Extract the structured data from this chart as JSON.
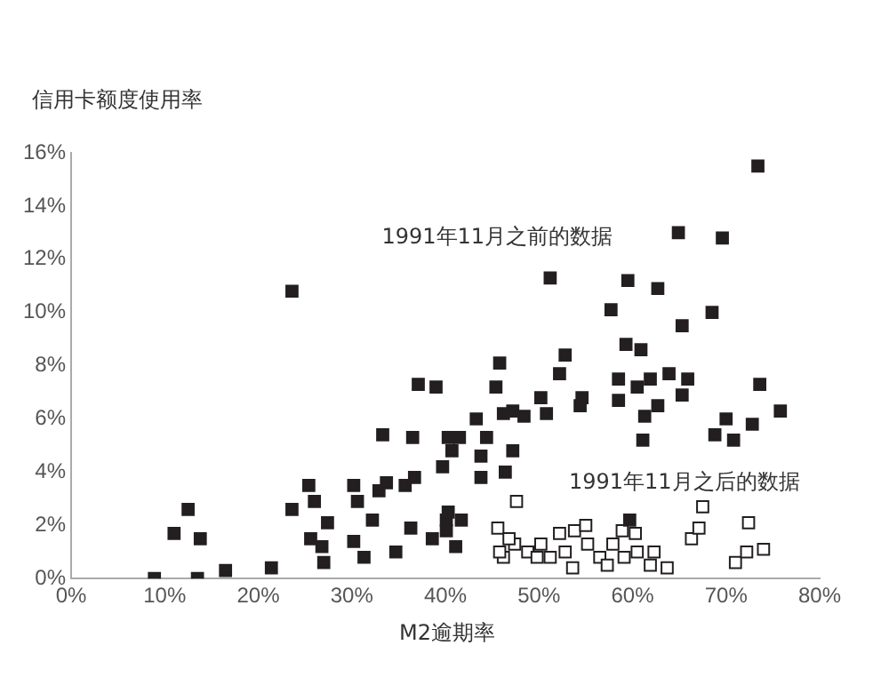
{
  "chart_data": {
    "type": "scatter",
    "ylabel": "信用卡额度使用率",
    "xlabel": "M2逾期率",
    "xlim": [
      0,
      80
    ],
    "xticks": [
      {
        "value": 0,
        "label": "0%"
      },
      {
        "value": 10,
        "label": "10%"
      },
      {
        "value": 20,
        "label": "20%"
      },
      {
        "value": 30,
        "label": "30%"
      },
      {
        "value": 40,
        "label": "40%"
      },
      {
        "value": 50,
        "label": "50%"
      },
      {
        "value": 60,
        "label": "60%"
      },
      {
        "value": 70,
        "label": "70%"
      },
      {
        "value": 80,
        "label": "80%"
      }
    ],
    "ylim": [
      0,
      16
    ],
    "yticks": [
      {
        "value": 0,
        "label": "0%"
      },
      {
        "value": 2,
        "label": "2%"
      },
      {
        "value": 4,
        "label": "4%"
      },
      {
        "value": 6,
        "label": "6%"
      },
      {
        "value": 8,
        "label": "8%"
      },
      {
        "value": 10,
        "label": "10%"
      },
      {
        "value": 12,
        "label": "12%"
      },
      {
        "value": 14,
        "label": "14%"
      },
      {
        "value": 16,
        "label": "16%"
      }
    ],
    "grid": false,
    "legend": false,
    "marker": "square",
    "annotations": [
      "1991年11月之前的数据",
      "1991年11月之后的数据"
    ],
    "series": [
      {
        "color": "#231f20",
        "x": [
          8.9,
          11,
          12.5,
          13.8,
          13.5,
          16.5,
          21.4,
          23.6,
          23.6,
          25.4,
          26,
          25.6,
          27,
          27.4,
          26.8,
          30.2,
          30.6,
          30.2,
          31.3,
          32.2,
          32.9,
          33.3,
          33.7,
          34.7,
          35.7,
          36.5,
          37.1,
          36.7,
          36.3,
          39,
          38.6,
          39.7,
          40.3,
          40.1,
          41.1,
          41.7,
          40.7,
          41.5,
          43.3,
          44.4,
          43.8,
          43.8,
          46.4,
          47.2,
          45.4,
          45.8,
          46.2,
          47.2,
          48.4,
          50.2,
          50.8,
          51.2,
          52.8,
          52.2,
          54.4,
          54.6,
          57.7,
          59.5,
          59.3,
          60.9,
          58.5,
          58.5,
          60.5,
          61.9,
          63.9,
          61.3,
          62.7,
          61.1,
          62.7,
          64.9,
          65.3,
          65.9,
          65.3,
          68.5,
          69.6,
          73.4,
          73.6,
          70,
          68.8,
          70.8,
          72.8,
          75.8,
          59.7,
          40.3,
          40.1
        ],
        "values": [
          0,
          1.7,
          2.6,
          1.5,
          0,
          0.3,
          0.4,
          10.8,
          2.6,
          3.5,
          2.9,
          1.5,
          0.6,
          2.1,
          1.2,
          3.5,
          2.9,
          1.4,
          0.8,
          2.2,
          3.3,
          5.4,
          3.6,
          1,
          3.5,
          5.3,
          7.3,
          3.8,
          1.9,
          7.2,
          1.5,
          4.2,
          5.3,
          2.2,
          1.2,
          2.2,
          4.8,
          5.3,
          6,
          5.3,
          4.6,
          3.8,
          4,
          4.8,
          7.2,
          8.1,
          6.2,
          6.3,
          6.1,
          6.8,
          6.2,
          11.3,
          8.4,
          7.7,
          6.5,
          6.8,
          10.1,
          11.2,
          8.8,
          8.6,
          7.5,
          6.7,
          7.2,
          7.5,
          7.7,
          6.1,
          6.5,
          5.2,
          10.9,
          13,
          9.5,
          7.5,
          6.9,
          10,
          12.8,
          15.5,
          7.3,
          6,
          5.4,
          5.2,
          5.8,
          6.3,
          2.2,
          2.5,
          1.8
        ]
      },
      {
        "color": "#ffffff",
        "x": [
          47.6,
          45.6,
          46.2,
          47.4,
          48.8,
          50.2,
          51.2,
          52.2,
          53.6,
          53.8,
          55,
          55.2,
          56.5,
          57.3,
          57.9,
          58.9,
          59.1,
          60.3,
          60.5,
          61.9,
          62.3,
          63.7,
          66.3,
          67.1,
          67.5,
          71,
          72.2,
          72.4,
          74,
          45.8,
          46.8,
          49.8,
          52.8
        ],
        "values": [
          2.9,
          1.9,
          0.8,
          1.3,
          1,
          1.3,
          0.8,
          1.7,
          0.4,
          1.8,
          2,
          1.3,
          0.8,
          0.5,
          1.3,
          1.8,
          0.8,
          1.7,
          1,
          0.5,
          1,
          0.4,
          1.5,
          1.9,
          2.7,
          0.6,
          1,
          2.1,
          1.1,
          1,
          1.5,
          0.8,
          1
        ]
      }
    ]
  }
}
